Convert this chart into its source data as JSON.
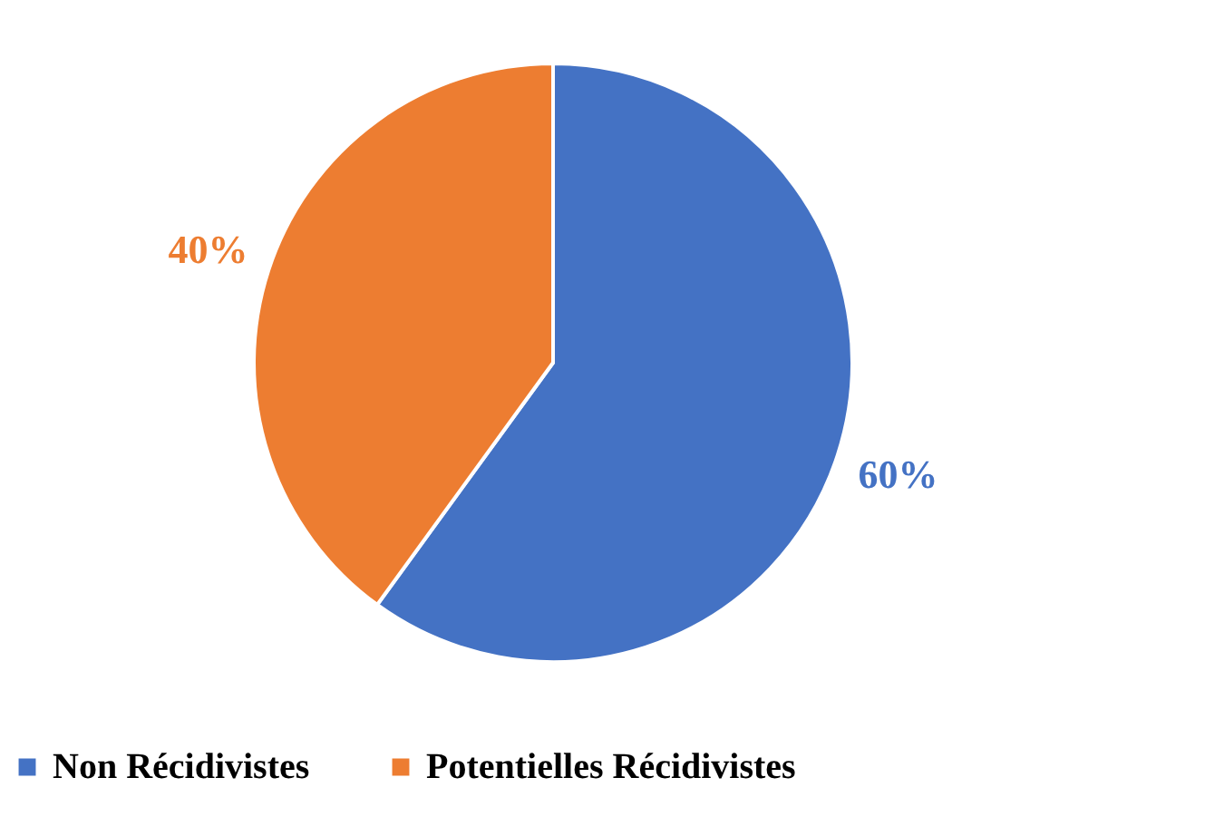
{
  "chart_data": {
    "type": "pie",
    "categories": [
      "Non Récidivistes",
      "Potentielles Récidivistes"
    ],
    "values": [
      60,
      40
    ],
    "colors": [
      "#4472c4",
      "#ed7d31"
    ],
    "value_labels": [
      "60%",
      "40%"
    ],
    "legend": "bottom"
  }
}
